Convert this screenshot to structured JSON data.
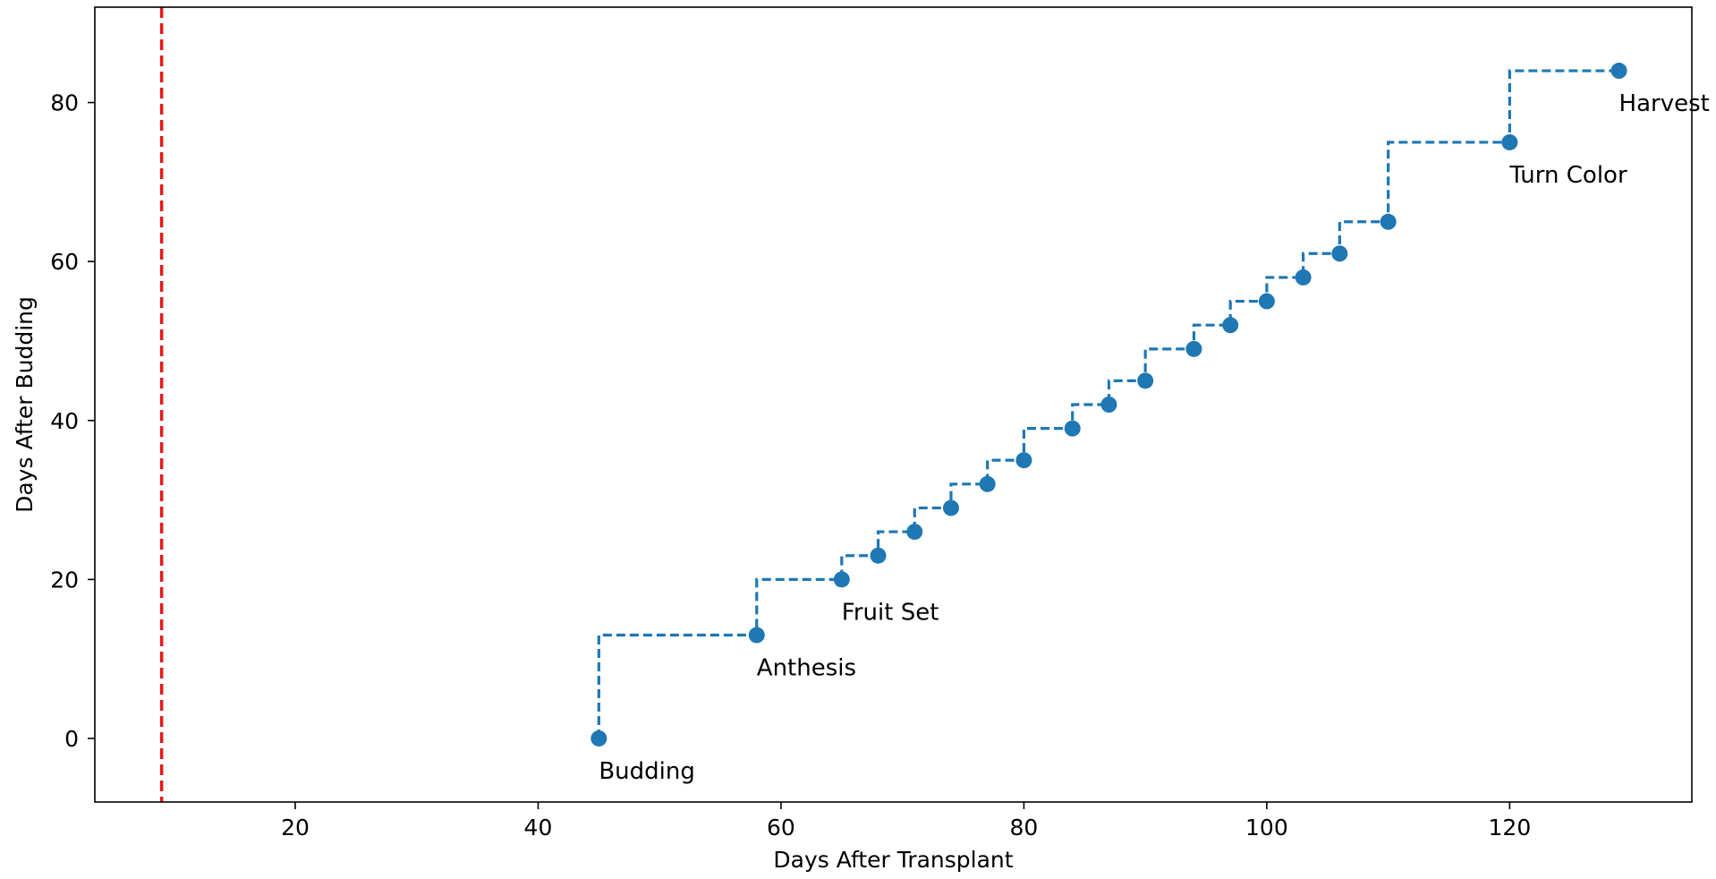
{
  "chart_data": {
    "type": "line",
    "title": "",
    "xlabel": "Days After Transplant",
    "ylabel": "Days After Budding",
    "xlim": [
      3.5,
      135
    ],
    "ylim": [
      -8,
      92
    ],
    "xticks": [
      20,
      40,
      60,
      80,
      100,
      120
    ],
    "yticks": [
      0,
      20,
      40,
      60,
      80
    ],
    "grid": false,
    "legend": "none",
    "step": "pre",
    "series": [
      {
        "color": "#1f77b4",
        "points": [
          {
            "x": 45,
            "y": 0
          },
          {
            "x": 58,
            "y": 13
          },
          {
            "x": 65,
            "y": 20
          },
          {
            "x": 68,
            "y": 23
          },
          {
            "x": 71,
            "y": 26
          },
          {
            "x": 74,
            "y": 29
          },
          {
            "x": 77,
            "y": 32
          },
          {
            "x": 80,
            "y": 35
          },
          {
            "x": 84,
            "y": 39
          },
          {
            "x": 87,
            "y": 42
          },
          {
            "x": 90,
            "y": 45
          },
          {
            "x": 94,
            "y": 49
          },
          {
            "x": 97,
            "y": 52
          },
          {
            "x": 100,
            "y": 55
          },
          {
            "x": 103,
            "y": 58
          },
          {
            "x": 106,
            "y": 61
          },
          {
            "x": 110,
            "y": 65
          },
          {
            "x": 120,
            "y": 75
          },
          {
            "x": 129,
            "y": 84
          }
        ]
      }
    ],
    "annotations": [
      {
        "text": "Budding",
        "x": 45,
        "y": 0
      },
      {
        "text": "Anthesis",
        "x": 58,
        "y": 13
      },
      {
        "text": "Fruit Set",
        "x": 65,
        "y": 20
      },
      {
        "text": "Turn Color",
        "x": 120,
        "y": 75
      },
      {
        "text": "Harvest",
        "x": 129,
        "y": 84
      }
    ],
    "vline": {
      "x": 9,
      "color": "#e41a1c"
    }
  }
}
